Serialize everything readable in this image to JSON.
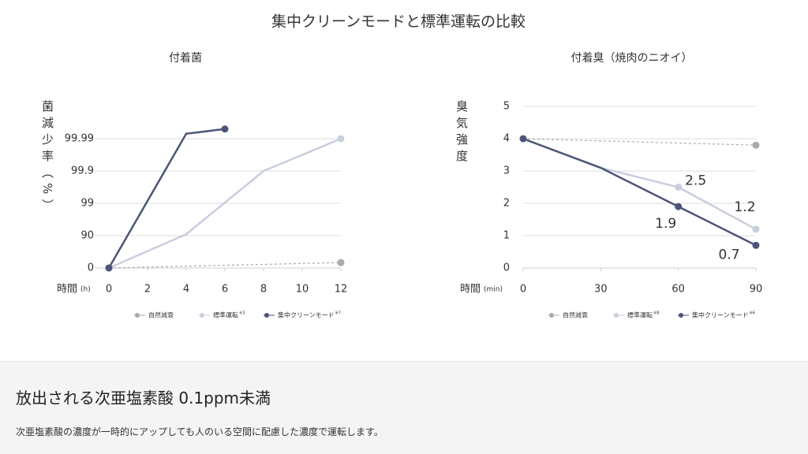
{
  "title": "集中クリーンモードと標準運転の比較",
  "chart_data": [
    {
      "type": "line",
      "title": "付着菌",
      "ylabel": "菌減少率（%）",
      "xlabel": "時間",
      "xunit": "(h)",
      "yscale": "log-reduction",
      "ylim": [
        0,
        99.999
      ],
      "yticks": [
        0,
        90,
        99,
        99.9,
        99.99
      ],
      "xlim": [
        0,
        12
      ],
      "xticks": [
        0,
        2,
        4,
        6,
        8,
        10,
        12
      ],
      "grid": true,
      "label_points": [],
      "series": [
        {
          "name": "自然減衰",
          "color": "#a9a9a9",
          "dashed": true,
          "x": [
            0,
            12
          ],
          "values": [
            0,
            32
          ]
        },
        {
          "name": "標準運転",
          "note": "※3",
          "color": "#c8cede",
          "x": [
            0,
            4,
            8,
            12
          ],
          "values": [
            0,
            91,
            99.9,
            99.99
          ]
        },
        {
          "name": "集中クリーンモード",
          "note": "※7",
          "color": "#4a5577",
          "x": [
            0,
            4,
            6
          ],
          "values": [
            0,
            99.993,
            99.995
          ]
        }
      ]
    },
    {
      "type": "line",
      "title": "付着臭（焼肉のニオイ）",
      "ylabel": "臭気強度",
      "xlabel": "時間",
      "xunit": "(min)",
      "ylim": [
        0,
        5
      ],
      "yticks": [
        0,
        1,
        2,
        3,
        4,
        5
      ],
      "xlim": [
        0,
        90
      ],
      "xticks": [
        0,
        30,
        60,
        90
      ],
      "grid": true,
      "label_points": [
        2,
        3
      ],
      "series": [
        {
          "name": "自然減衰",
          "color": "#a9a9a9",
          "dashed": true,
          "x": [
            0,
            90
          ],
          "values": [
            4,
            3.8
          ]
        },
        {
          "name": "標準運転",
          "note": "※8",
          "color": "#c8cede",
          "x": [
            0,
            30,
            60,
            90
          ],
          "values": [
            4,
            3.1,
            2.5,
            1.2
          ]
        },
        {
          "name": "集中クリーンモード",
          "note": "※6",
          "color": "#4a5577",
          "x": [
            0,
            30,
            60,
            90
          ],
          "values": [
            4,
            3.1,
            1.9,
            0.7
          ]
        }
      ]
    }
  ],
  "section": {
    "heading": "放出される次亜塩素酸 0.1ppm未満",
    "body": "次亜塩素酸の濃度が一時的にアップしても人のいる空間に配慮した濃度で運転します。"
  }
}
